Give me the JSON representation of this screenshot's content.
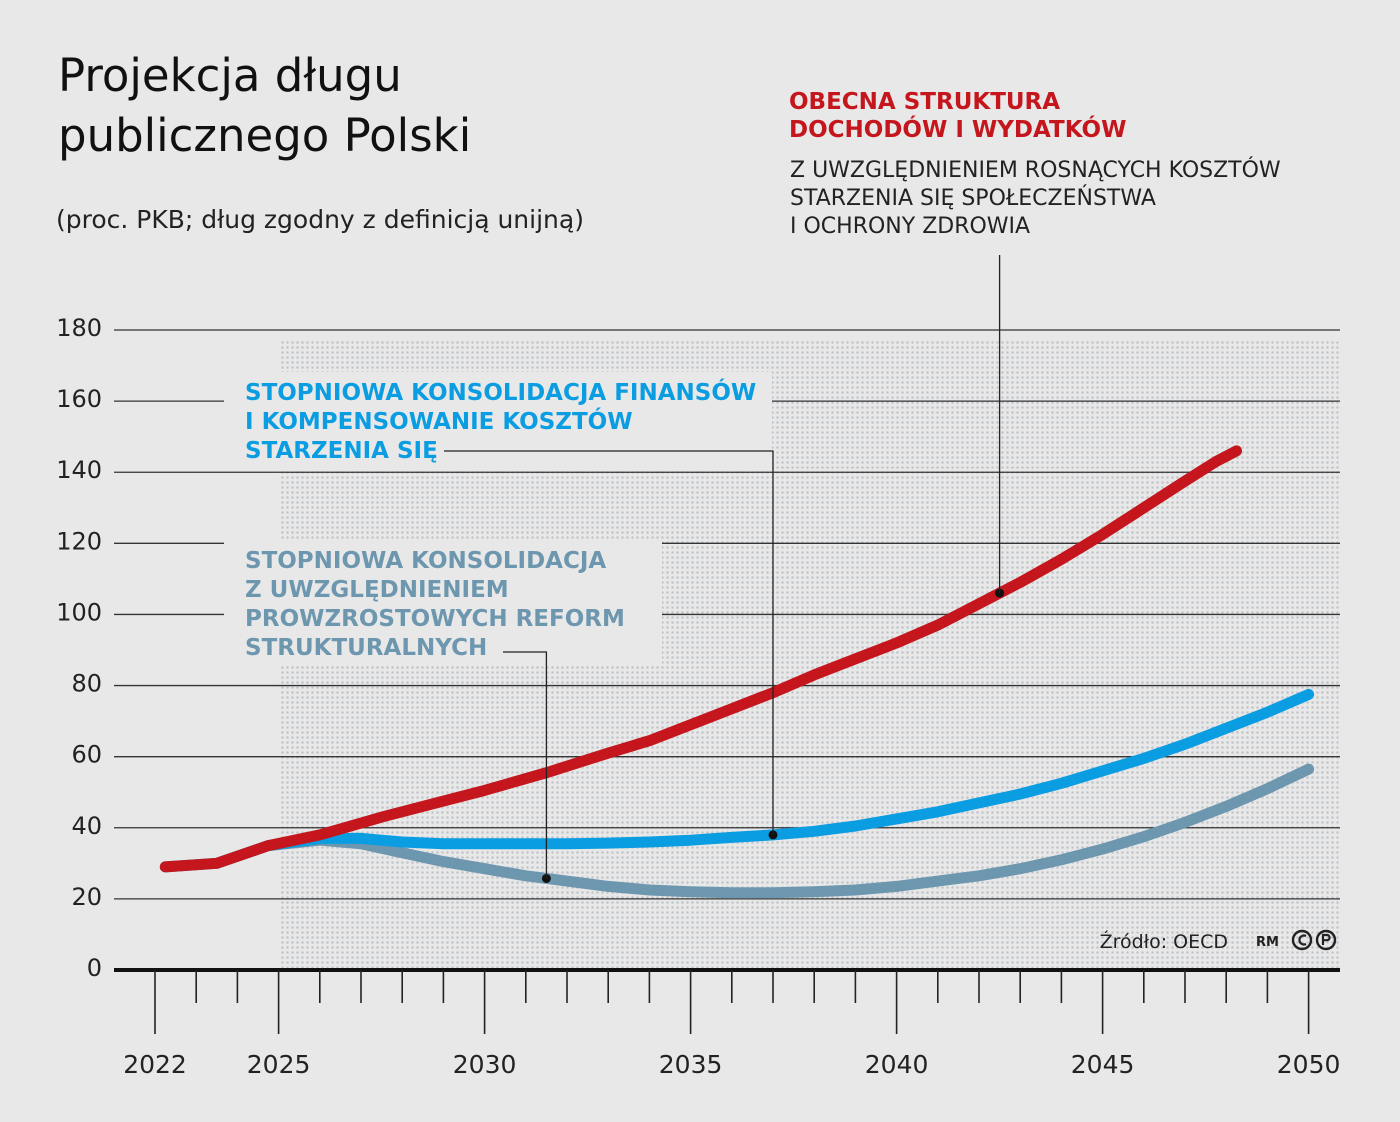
{
  "chart_data": {
    "type": "line",
    "title_lines": [
      "Projekcja długu",
      "publicznego Polski"
    ],
    "subtitle": "(proc. PKB; dług zgodny z definicją unijną)",
    "xlabel": "",
    "ylabel": "",
    "xlim": [
      2022,
      2050
    ],
    "ylim": [
      0,
      180
    ],
    "x_ticks": [
      2022,
      2025,
      2030,
      2035,
      2040,
      2045,
      2050
    ],
    "y_ticks": [
      0,
      20,
      40,
      60,
      80,
      100,
      120,
      140,
      160,
      180
    ],
    "grid": true,
    "shaded_projection_region": [
      2025,
      2050
    ],
    "series": [
      {
        "label_lines": [
          "OBECNA STRUKTURA",
          "DOCHODÓW I WYDATKÓW"
        ],
        "note_lines": [
          "Z UWZGLĘDNIENIEM ROSNĄCYCH KOSZTÓW",
          "STARZENIA SIĘ SPOŁECZEŃSTWA",
          "I OCHRONY ZDROWIA"
        ],
        "color": "#c4161c",
        "annotation_year": 2042.5,
        "x": [
          2022.25,
          2023.5,
          2024.75,
          2026,
          2027.5,
          2029,
          2030,
          2031.5,
          2033,
          2034,
          2035,
          2036,
          2037,
          2038,
          2039,
          2040,
          2041,
          2042,
          2043,
          2044,
          2045,
          2046,
          2047,
          2047.75,
          2048.25
        ],
        "y": [
          29,
          30,
          35,
          38,
          43,
          47.5,
          50.5,
          55.5,
          61,
          64.5,
          69,
          73.5,
          78,
          83,
          87.5,
          92,
          97,
          103,
          109,
          115.5,
          122.5,
          130,
          137.5,
          143,
          146
        ]
      },
      {
        "label_lines": [
          "STOPNIOWA KONSOLIDACJA FINANSÓW",
          "I KOMPENSOWANIE KOSZTÓW",
          "STARZENIA SIĘ"
        ],
        "color": "#0b9de2",
        "annotation_year": 2037,
        "x": [
          2022.25,
          2023.5,
          2024.75,
          2026,
          2027,
          2028,
          2029,
          2030,
          2031,
          2032,
          2033,
          2034,
          2035,
          2036,
          2037,
          2038,
          2039,
          2040,
          2041,
          2042,
          2043,
          2044,
          2045,
          2046,
          2047,
          2048,
          2049,
          2050
        ],
        "y": [
          29,
          30,
          35,
          37,
          37,
          36,
          35.5,
          35.5,
          35.5,
          35.5,
          35.7,
          36,
          36.5,
          37.3,
          38,
          39,
          40.5,
          42.5,
          44.5,
          47,
          49.5,
          52.5,
          56,
          59.5,
          63.5,
          68,
          72.5,
          77.5
        ]
      },
      {
        "label_lines": [
          "STOPNIOWA KONSOLIDACJA",
          "Z UWZGLĘDNIENIEM",
          "PROWZROSTOWYCH REFORM",
          "STRUKTURALNYCH"
        ],
        "color": "#6d97af",
        "annotation_year": 2031.5,
        "x": [
          2024.75,
          2026,
          2027,
          2028,
          2029,
          2030,
          2031,
          2032,
          2033,
          2034,
          2035,
          2036,
          2037,
          2038,
          2039,
          2040,
          2041,
          2042,
          2043,
          2044,
          2045,
          2046,
          2047,
          2048,
          2049,
          2050
        ],
        "y": [
          35,
          36.5,
          35.5,
          33,
          30.5,
          28.5,
          26.5,
          25,
          23.5,
          22.5,
          22,
          21.7,
          21.7,
          22,
          22.5,
          23.5,
          25,
          26.5,
          28.5,
          31,
          34,
          37.5,
          41.5,
          46,
          51,
          56.5
        ]
      }
    ],
    "source": "Źródło: OECD",
    "credit_initials": "RM",
    "credit_icons": [
      "copyright-icon",
      "phonogram-icon"
    ]
  }
}
